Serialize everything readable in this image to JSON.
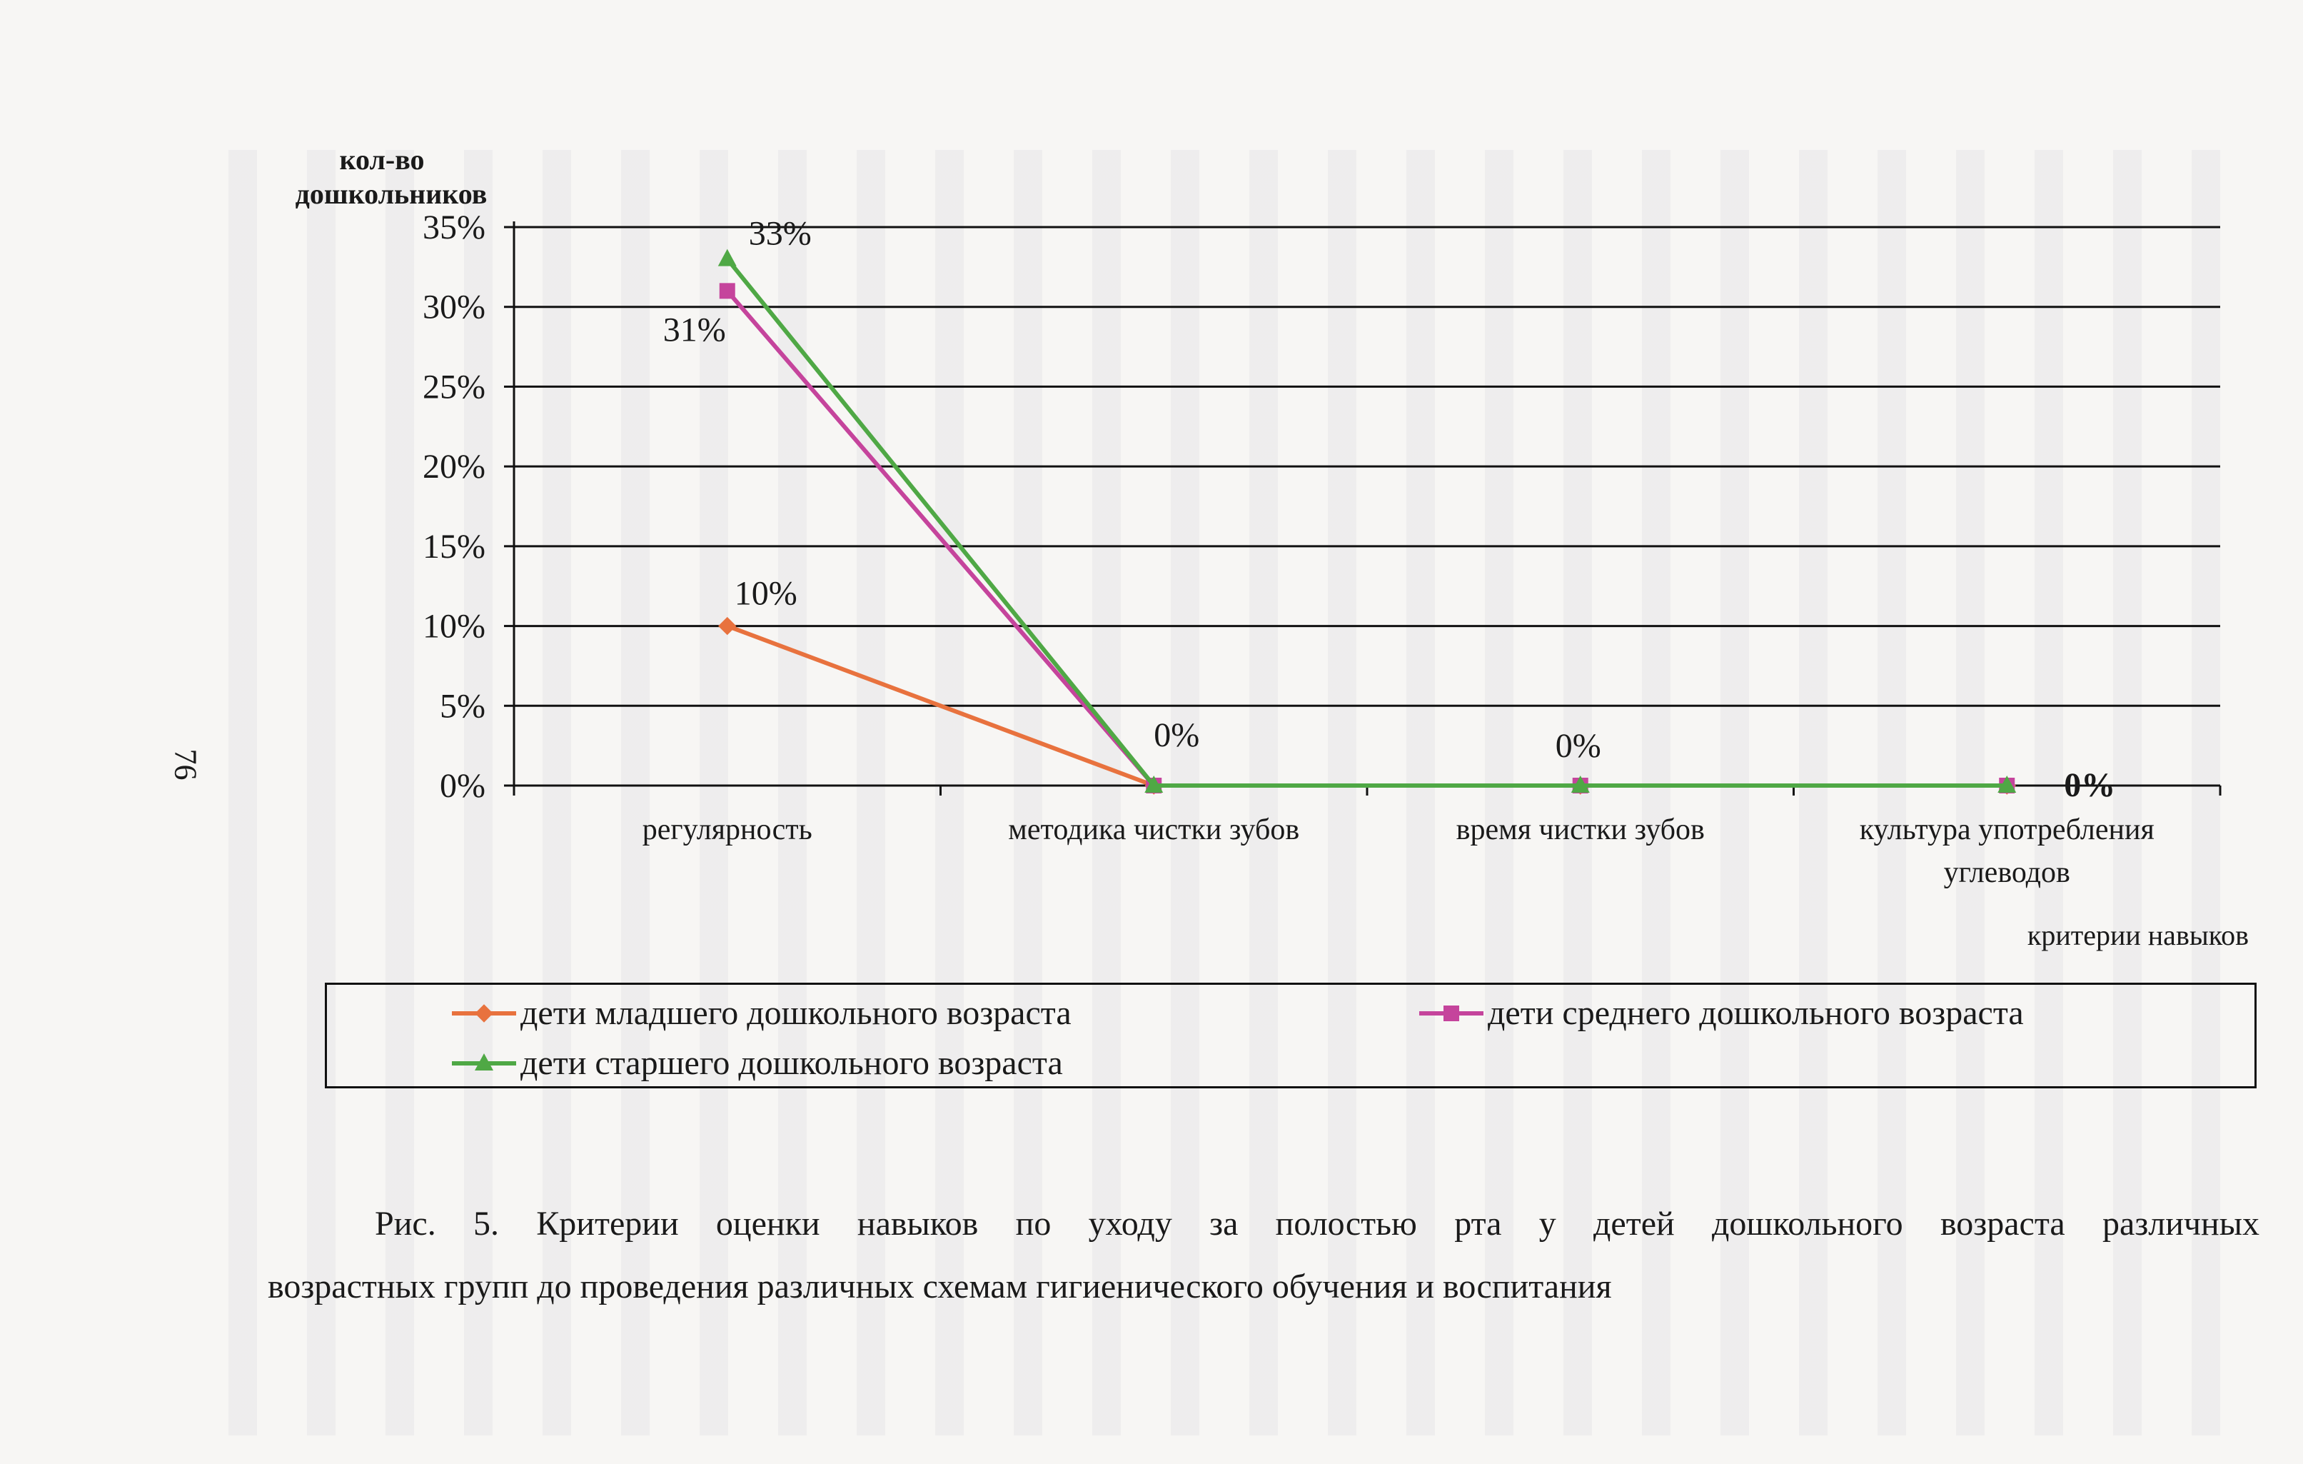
{
  "page_number": "76",
  "chart_data": {
    "type": "line",
    "ylabel_line1": "кол-во",
    "ylabel_line2": "дошкольников",
    "xlabel": "критерии навыков",
    "ylim": [
      0,
      0.35
    ],
    "yticks": [
      "0%",
      "5%",
      "10%",
      "15%",
      "20%",
      "25%",
      "30%",
      "35%"
    ],
    "grid": true,
    "legend_position": "bottom",
    "categories": [
      [
        "регулярность"
      ],
      [
        "методика чистки зубов"
      ],
      [
        "время чистки зубов"
      ],
      [
        "культура употребления",
        "углеводов"
      ]
    ],
    "series": [
      {
        "name": "дети младшего дошкольного возраста",
        "color": "#e8723e",
        "marker": "diamond",
        "values": [
          0.1,
          0.0,
          0.0,
          0.0
        ]
      },
      {
        "name": "дети среднего дошкольного возраста",
        "color": "#c5449c",
        "marker": "square",
        "values": [
          0.31,
          0.0,
          0.0,
          0.0
        ]
      },
      {
        "name": "дети старшего дошкольного возраста",
        "color": "#4fa845",
        "marker": "triangle",
        "values": [
          0.33,
          0.0,
          0.0,
          0.0
        ]
      }
    ],
    "data_labels": [
      {
        "text": "33%",
        "category": 0,
        "value": 0.33
      },
      {
        "text": "31%",
        "category": 0,
        "value": 0.31
      },
      {
        "text": "10%",
        "category": 0,
        "value": 0.1
      },
      {
        "text": "0%",
        "category": 1,
        "value": 0.0
      },
      {
        "text": "0%",
        "category": 2,
        "value": 0.0
      },
      {
        "text": "0%",
        "category": 3,
        "value": 0.0
      }
    ]
  },
  "caption": {
    "line1": "Рис. 5. Критерии оценки навыков по уходу за полостью рта у детей дошкольного возраста различных",
    "line2": "возрастных групп до проведения  различных схемам гигиенического обучения и воспитания"
  }
}
